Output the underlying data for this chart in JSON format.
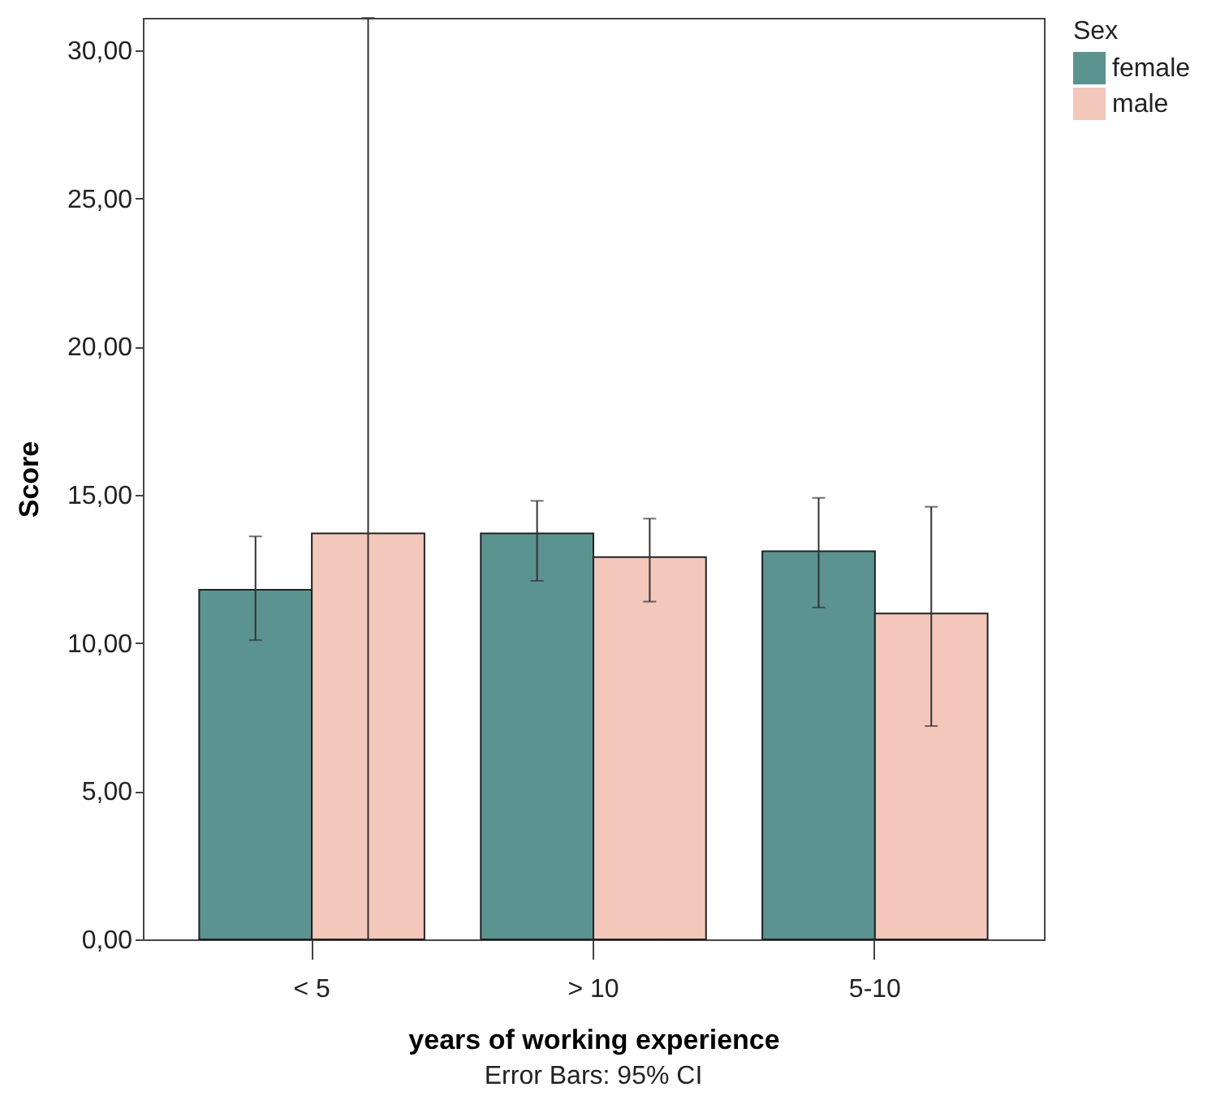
{
  "chart_data": {
    "type": "bar",
    "xlabel": "years of working experience",
    "ylabel": "Score",
    "legend_title": "Sex",
    "annotations": [
      "Error Bars: 95% CI"
    ],
    "categories": [
      "< 5",
      "> 10",
      "5-10"
    ],
    "series": [
      {
        "name": "female",
        "color": "#5b9390",
        "values": [
          11.8,
          13.7,
          13.1
        ],
        "errors": [
          [
            10.1,
            13.6
          ],
          [
            12.1,
            14.8
          ],
          [
            11.2,
            14.9
          ]
        ]
      },
      {
        "name": "male",
        "color": "#f3c8bb",
        "values": [
          13.7,
          12.9,
          11.0
        ],
        "errors": [
          [
            0.0,
            31.1
          ],
          [
            11.4,
            14.2
          ],
          [
            7.2,
            14.6
          ]
        ]
      }
    ],
    "ylim": [
      0,
      31.1
    ],
    "yticks": [
      {
        "value": 0,
        "label": "0,00"
      },
      {
        "value": 5,
        "label": "5,00"
      },
      {
        "value": 10,
        "label": "10,00"
      },
      {
        "value": 15,
        "label": "15,00"
      },
      {
        "value": 20,
        "label": "20,00"
      },
      {
        "value": 25,
        "label": "25,00"
      },
      {
        "value": 30,
        "label": "30,00"
      }
    ],
    "grid": false,
    "legend": "top right"
  }
}
